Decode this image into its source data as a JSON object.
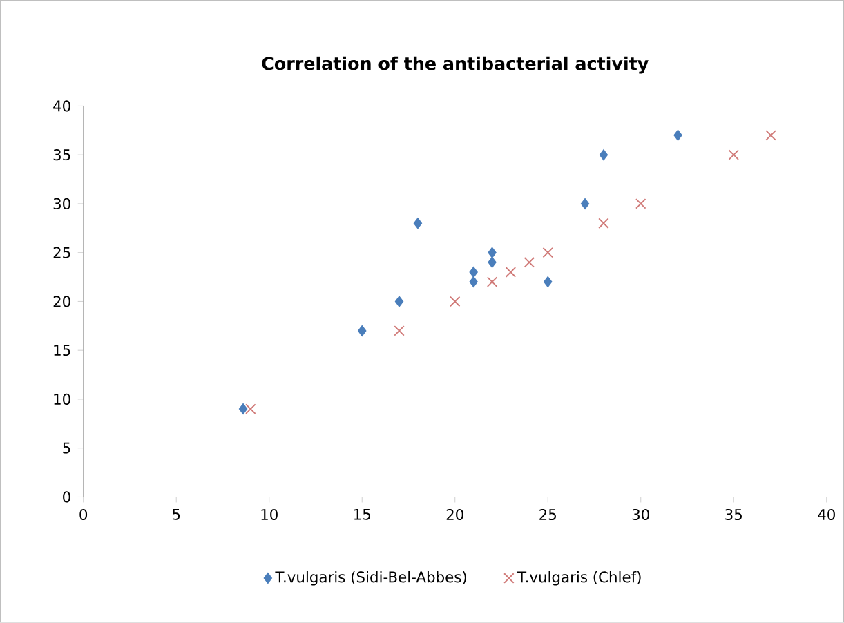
{
  "chart_data": {
    "type": "scatter",
    "title": "Correlation of the antibacterial activity",
    "xlim": [
      0,
      40
    ],
    "xticks": [
      0,
      5,
      10,
      15,
      20,
      25,
      30,
      35,
      40
    ],
    "ylim": [
      0,
      40
    ],
    "yticks": [
      0,
      5,
      10,
      15,
      20,
      25,
      30,
      35,
      40
    ],
    "grid": false,
    "legend": "bottom",
    "series": [
      {
        "name": "T.vulgaris (Sidi-Bel-Abbes)",
        "color": "#4a7ebb",
        "marker": "diamond",
        "x": [
          8.6,
          15,
          17,
          18,
          21,
          21,
          22,
          22,
          25,
          27,
          28,
          32
        ],
        "values": [
          9,
          17,
          20,
          28,
          23,
          22,
          25,
          24,
          22,
          30,
          35,
          37
        ]
      },
      {
        "name": "T.vulgaris (Chlef)",
        "color": "#d07a78",
        "marker": "cross",
        "x": [
          9,
          17,
          20,
          22,
          23,
          24,
          25,
          28,
          30,
          35,
          37
        ],
        "values": [
          9,
          17,
          20,
          22,
          23,
          24,
          25,
          28,
          30,
          35,
          37
        ]
      }
    ]
  }
}
